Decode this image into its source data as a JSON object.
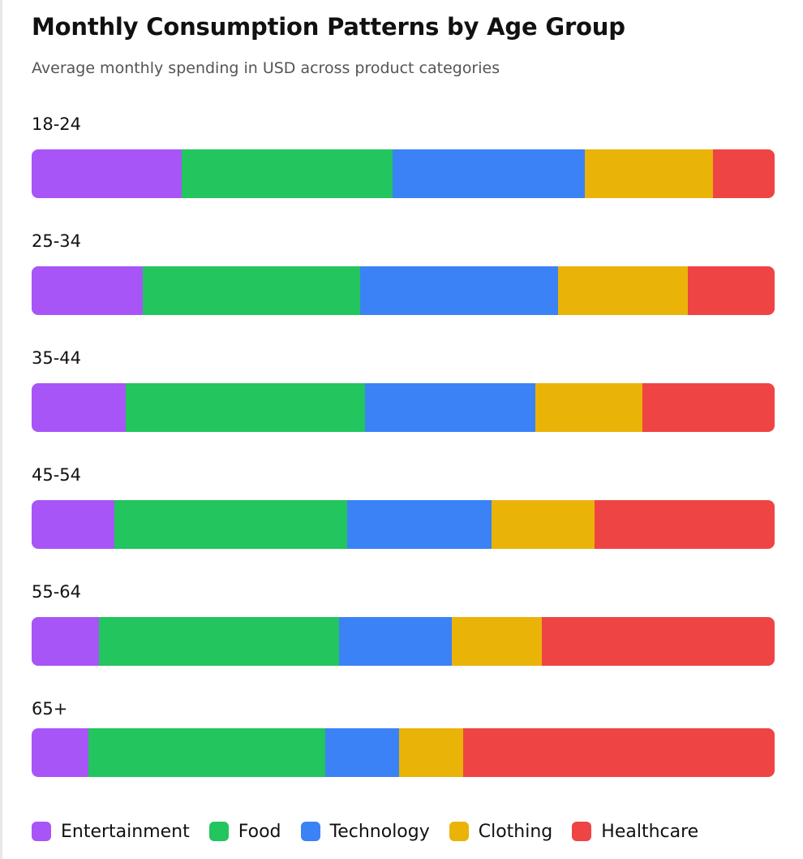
{
  "chart_data": {
    "type": "bar",
    "orientation": "horizontal",
    "stacked": true,
    "normalized": true,
    "title": "Monthly Consumption Patterns by Age Group",
    "subtitle": "Average monthly spending in USD across product categories",
    "categories": [
      "18-24",
      "25-34",
      "35-44",
      "45-54",
      "55-64",
      "65+"
    ],
    "series": [
      {
        "name": "Entertainment",
        "color": "#a855f7",
        "values": [
          0.202,
          0.15,
          0.127,
          0.111,
          0.091,
          0.076
        ]
      },
      {
        "name": "Food",
        "color": "#22c55e",
        "values": [
          0.284,
          0.292,
          0.322,
          0.314,
          0.323,
          0.319
        ]
      },
      {
        "name": "Technology",
        "color": "#3b82f6",
        "values": [
          0.258,
          0.266,
          0.229,
          0.194,
          0.152,
          0.099
        ]
      },
      {
        "name": "Clothing",
        "color": "#eab308",
        "values": [
          0.173,
          0.175,
          0.144,
          0.139,
          0.121,
          0.087
        ]
      },
      {
        "name": "Healthcare",
        "color": "#ef4444",
        "values": [
          0.083,
          0.117,
          0.178,
          0.242,
          0.313,
          0.419
        ]
      }
    ],
    "legend_position": "bottom",
    "grid": false
  }
}
